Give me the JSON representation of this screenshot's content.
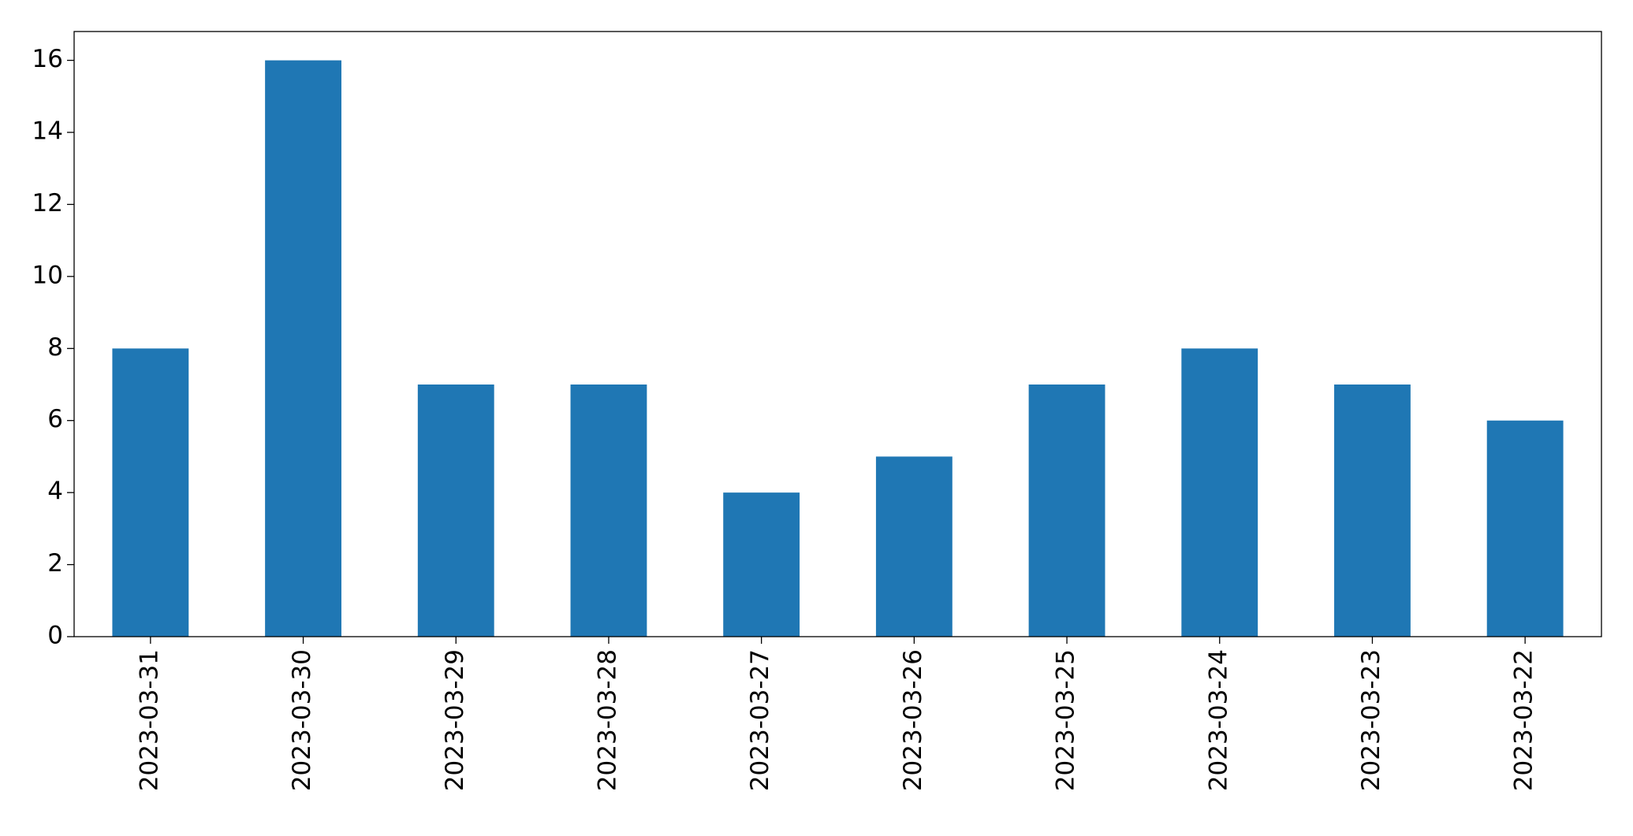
{
  "chart_data": {
    "type": "bar",
    "categories": [
      "2023-03-31",
      "2023-03-30",
      "2023-03-29",
      "2023-03-28",
      "2023-03-27",
      "2023-03-26",
      "2023-03-25",
      "2023-03-24",
      "2023-03-23",
      "2023-03-22"
    ],
    "values": [
      8,
      16,
      7,
      7,
      4,
      5,
      7,
      8,
      7,
      6
    ],
    "color": "#1f77b4",
    "ylim": [
      0,
      16.8
    ],
    "yticks": [
      0,
      2,
      4,
      6,
      8,
      10,
      12,
      14,
      16
    ],
    "grid": false
  }
}
